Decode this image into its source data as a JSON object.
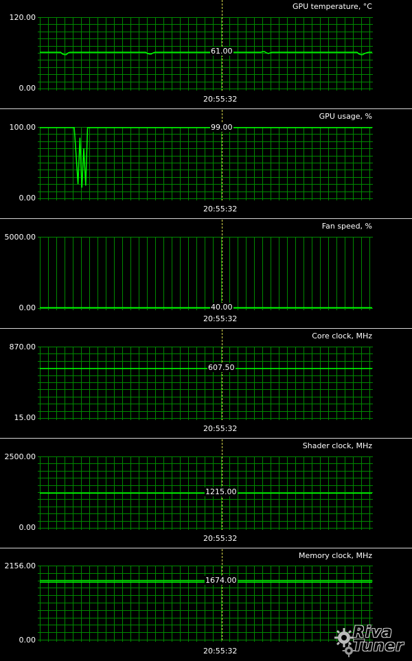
{
  "monitor": {
    "cursor_time": "20:55:32",
    "colors": {
      "grid": "#008a00",
      "trace": "#00ff00",
      "cursor": "#d8d84a",
      "text": "#ffffff",
      "background": "#000000"
    }
  },
  "charts": [
    {
      "title": "GPU temperature, °C",
      "ymax": "120.00",
      "ymin": "0.00",
      "current": "61.00"
    },
    {
      "title": "GPU usage, %",
      "ymax": "100.00",
      "ymin": "0.00",
      "current": "99.00"
    },
    {
      "title": "Fan speed, %",
      "ymax": "5000.00",
      "ymin": "0.00",
      "current": "40.00"
    },
    {
      "title": "Core clock, MHz",
      "ymax": "870.00",
      "ymin": "15.00",
      "current": "607.50"
    },
    {
      "title": "Shader clock, MHz",
      "ymax": "2500.00",
      "ymin": "0.00",
      "current": "1215.00"
    },
    {
      "title": "Memory clock, MHz",
      "ymax": "2156.00",
      "ymin": "0.00",
      "current": "1674.00"
    }
  ],
  "chart_data": [
    {
      "type": "line",
      "title": "GPU temperature, °C",
      "ylim": [
        0,
        120
      ],
      "grid": true,
      "series": [
        {
          "values": [
            61,
            61,
            61,
            61,
            61,
            61,
            61,
            61,
            61,
            61,
            61,
            61,
            58,
            57,
            57,
            60,
            61,
            61,
            61,
            61,
            61,
            61,
            61,
            61,
            61,
            61,
            61,
            61,
            61,
            61,
            61,
            61,
            61,
            61,
            61,
            61,
            61,
            61,
            61,
            61,
            61,
            61,
            61,
            61,
            61,
            61,
            61,
            61,
            61,
            61,
            61,
            61,
            61,
            61,
            61,
            61,
            61,
            59,
            58,
            58,
            60,
            61,
            61,
            61,
            61,
            61,
            61,
            61,
            61,
            61,
            61,
            61,
            61,
            61,
            61,
            61,
            61,
            61,
            61,
            61,
            61,
            61,
            61,
            61,
            61,
            61,
            61,
            61,
            61,
            61,
            61,
            61,
            61,
            61,
            61,
            61,
            61,
            61,
            61,
            61,
            61,
            61,
            61,
            61,
            61,
            61,
            61,
            61,
            61,
            61,
            61,
            61,
            61,
            61,
            61,
            61,
            61,
            61,
            62,
            62,
            60,
            59,
            60,
            61,
            61,
            61,
            61,
            61,
            61,
            61,
            61,
            61,
            61,
            61,
            61,
            61,
            61,
            61,
            61,
            61,
            61,
            61,
            61,
            61,
            61,
            61,
            61,
            61,
            61,
            61,
            61,
            61,
            61,
            61,
            61,
            61,
            61,
            61,
            61,
            61,
            61,
            61,
            61,
            61,
            61,
            61,
            61,
            61,
            61,
            58,
            57,
            57,
            59,
            60,
            61,
            61,
            61
          ]
        }
      ]
    },
    {
      "type": "line",
      "title": "GPU usage, %",
      "ylim": [
        0,
        100
      ],
      "grid": true,
      "series": [
        {
          "values": [
            99,
            99,
            99,
            99,
            99,
            99,
            99,
            99,
            99,
            99,
            99,
            99,
            99,
            99,
            99,
            99,
            99,
            99,
            99,
            60,
            20,
            85,
            15,
            70,
            18,
            99,
            99,
            99,
            99,
            99,
            99,
            99,
            99,
            99,
            99,
            99,
            99,
            99,
            99,
            99,
            99,
            99,
            99,
            99,
            99,
            99,
            99,
            99,
            99,
            99,
            99,
            99,
            99,
            99,
            99,
            99,
            99,
            99,
            99,
            99,
            99,
            99,
            99,
            99,
            99,
            99,
            99,
            99,
            99,
            99,
            99,
            99,
            99,
            99,
            99,
            99,
            99,
            99,
            99,
            99,
            99,
            99,
            99,
            99,
            99,
            99,
            99,
            99,
            99,
            99,
            99,
            99,
            99,
            99,
            99,
            99,
            99,
            99,
            99,
            99,
            99,
            99,
            99,
            99,
            99,
            99,
            99,
            99,
            99,
            99,
            99,
            99,
            99,
            99,
            99,
            99,
            99,
            99,
            99,
            99,
            99,
            99,
            99,
            99,
            99,
            99,
            99,
            99,
            99,
            99,
            99,
            99,
            99,
            99,
            99,
            99,
            99,
            99,
            99,
            99,
            99,
            99,
            99,
            99,
            99,
            99,
            99,
            99,
            99,
            99,
            99,
            99,
            99,
            99,
            99,
            99,
            99,
            99,
            99,
            99,
            99,
            99,
            99,
            99,
            99,
            99,
            99,
            99,
            99,
            99,
            99,
            99,
            99,
            99,
            99
          ]
        }
      ]
    },
    {
      "type": "line",
      "title": "Fan speed, %",
      "ylim": [
        0,
        5000
      ],
      "grid": true,
      "series": [
        {
          "values": [
            40,
            40,
            40,
            40,
            40,
            40,
            40,
            40,
            40,
            40
          ]
        }
      ]
    },
    {
      "type": "line",
      "title": "Core clock, MHz",
      "ylim": [
        15,
        870
      ],
      "grid": true,
      "series": [
        {
          "values": [
            607.5,
            607.5,
            607.5,
            607.5,
            607.5,
            607.5,
            607.5,
            607.5,
            607.5,
            607.5
          ]
        }
      ]
    },
    {
      "type": "line",
      "title": "Shader clock, MHz",
      "ylim": [
        0,
        2500
      ],
      "grid": true,
      "series": [
        {
          "values": [
            1215,
            1215,
            1215,
            1215,
            1215,
            1215,
            1215,
            1215,
            1215,
            1215
          ]
        }
      ]
    },
    {
      "type": "line",
      "title": "Memory clock, MHz",
      "ylim": [
        0,
        2156
      ],
      "grid": true,
      "series": [
        {
          "values": [
            1674,
            1674,
            1674,
            1674,
            1674,
            1674,
            1674,
            1674,
            1674,
            1674
          ]
        }
      ]
    }
  ],
  "logo": {
    "text": "Riva Tuner"
  }
}
